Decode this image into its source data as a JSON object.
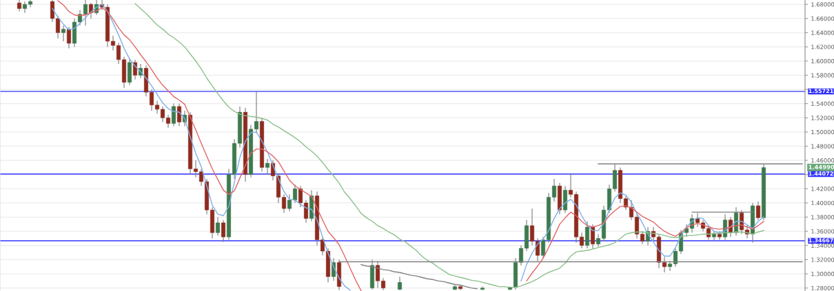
{
  "chart_data": {
    "type": "candlestick",
    "categories": [
      null,
      null,
      null,
      null,
      null,
      null,
      null,
      null,
      null,
      null,
      null,
      null,
      null,
      null,
      null,
      null,
      null,
      null,
      null,
      null,
      null,
      null,
      null,
      null,
      null,
      null,
      null,
      null,
      null,
      null,
      null,
      null,
      null,
      null,
      null,
      null,
      null,
      null,
      null,
      null,
      null,
      null,
      null,
      null,
      null,
      null,
      null,
      null,
      null,
      null,
      null,
      null,
      null,
      null,
      null,
      null,
      null,
      null,
      null,
      null,
      null,
      null,
      null,
      null,
      null,
      null,
      null,
      null,
      null,
      null,
      null,
      null,
      null,
      null,
      null,
      null,
      null,
      null,
      null,
      null,
      null,
      null,
      null,
      null,
      null,
      null,
      null,
      null,
      null,
      null,
      null,
      null,
      null,
      null,
      null,
      null,
      null,
      null,
      null,
      null,
      null,
      null,
      null,
      null,
      null,
      null,
      null,
      null,
      null,
      null,
      null,
      null,
      null,
      null,
      null,
      null,
      null,
      null,
      null,
      null,
      null,
      null,
      null,
      null,
      null,
      null,
      null,
      null,
      null,
      null,
      null,
      null,
      null,
      null,
      null,
      null,
      null,
      null,
      null,
      null,
      null,
      null,
      null,
      null,
      null,
      null
    ],
    "ohlc": [
      null,
      null,
      null,
      [
        1.682,
        1.686,
        1.67,
        1.674
      ],
      [
        1.674,
        1.684,
        1.668,
        1.68
      ],
      [
        1.68,
        1.686,
        1.676,
        1.684
      ],
      null,
      null,
      null,
      [
        1.684,
        1.686,
        1.655,
        1.66
      ],
      [
        1.66,
        1.664,
        1.632,
        1.64
      ],
      [
        1.64,
        1.65,
        1.628,
        1.645
      ],
      [
        1.645,
        1.648,
        1.618,
        1.625
      ],
      [
        1.625,
        1.66,
        1.62,
        1.655
      ],
      [
        1.655,
        1.672,
        1.65,
        1.666
      ],
      [
        1.666,
        1.686,
        1.65,
        1.68
      ],
      [
        1.68,
        1.682,
        1.66,
        1.668
      ],
      [
        1.668,
        1.686,
        1.665,
        1.68
      ],
      [
        1.68,
        1.686,
        1.672,
        1.676
      ],
      [
        1.676,
        1.68,
        1.62,
        1.628
      ],
      [
        1.628,
        1.636,
        1.615,
        1.622
      ],
      [
        1.622,
        1.626,
        1.596,
        1.602
      ],
      [
        1.602,
        1.606,
        1.562,
        1.57
      ],
      [
        1.57,
        1.604,
        1.566,
        1.598
      ],
      [
        1.598,
        1.602,
        1.574,
        1.58
      ],
      [
        1.58,
        1.596,
        1.576,
        1.59
      ],
      [
        1.59,
        1.594,
        1.55,
        1.556
      ],
      [
        1.556,
        1.56,
        1.53,
        1.538
      ],
      [
        1.538,
        1.544,
        1.526,
        1.532
      ],
      [
        1.532,
        1.536,
        1.514,
        1.52
      ],
      [
        1.52,
        1.524,
        1.506,
        1.512
      ],
      [
        1.512,
        1.54,
        1.508,
        1.536
      ],
      [
        1.536,
        1.54,
        1.508,
        1.514
      ],
      [
        1.514,
        1.53,
        1.508,
        1.524
      ],
      [
        1.524,
        1.528,
        1.44,
        1.448
      ],
      [
        1.448,
        1.46,
        1.436,
        1.444
      ],
      [
        1.444,
        1.448,
        1.424,
        1.43
      ],
      [
        1.43,
        1.434,
        1.384,
        1.39
      ],
      [
        1.39,
        1.394,
        1.35,
        1.358
      ],
      [
        1.358,
        1.38,
        1.354,
        1.372
      ],
      [
        1.372,
        1.376,
        1.345,
        1.352
      ],
      [
        1.352,
        1.448,
        1.348,
        1.44
      ],
      [
        1.44,
        1.49,
        1.434,
        1.484
      ],
      [
        1.484,
        1.536,
        1.478,
        1.528
      ],
      [
        1.528,
        1.534,
        1.43,
        1.44
      ],
      [
        1.44,
        1.51,
        1.436,
        1.504
      ],
      [
        1.504,
        1.557,
        1.498,
        1.515
      ],
      [
        1.515,
        1.52,
        1.444,
        1.45
      ],
      [
        1.45,
        1.462,
        1.44,
        1.456
      ],
      [
        1.456,
        1.46,
        1.432,
        1.438
      ],
      [
        1.438,
        1.442,
        1.4,
        1.408
      ],
      [
        1.408,
        1.412,
        1.386,
        1.392
      ],
      [
        1.392,
        1.412,
        1.388,
        1.404
      ],
      [
        1.404,
        1.426,
        1.4,
        1.42
      ],
      [
        1.42,
        1.424,
        1.394,
        1.4
      ],
      [
        1.4,
        1.404,
        1.372,
        1.378
      ],
      [
        1.378,
        1.418,
        1.374,
        1.41
      ],
      [
        1.41,
        1.416,
        1.34,
        1.348
      ],
      [
        1.348,
        1.352,
        1.326,
        1.332
      ],
      [
        1.332,
        1.336,
        1.288,
        1.296
      ],
      [
        1.296,
        1.322,
        1.29,
        1.316
      ],
      [
        1.316,
        1.32,
        1.277,
        1.282
      ],
      null,
      null,
      null,
      null,
      null,
      [
        1.28,
        1.32,
        1.278,
        1.312
      ],
      [
        1.312,
        1.318,
        1.28,
        1.29
      ],
      [
        1.29,
        1.294,
        1.277,
        1.28
      ],
      null,
      null,
      [
        1.278,
        1.296,
        1.277,
        1.288
      ],
      null,
      null,
      null,
      null,
      null,
      null,
      null,
      null,
      null,
      [
        1.278,
        1.284,
        1.277,
        1.282
      ],
      [
        1.282,
        1.284,
        1.277,
        1.279
      ],
      null,
      null,
      null,
      [
        1.278,
        1.282,
        1.277,
        1.28
      ],
      null,
      null,
      null,
      null,
      [
        1.278,
        1.282,
        1.277,
        1.281
      ],
      [
        1.281,
        1.322,
        1.278,
        1.316
      ],
      [
        1.316,
        1.34,
        1.312,
        1.336
      ],
      [
        1.336,
        1.376,
        1.332,
        1.368
      ],
      [
        1.368,
        1.392,
        1.34,
        1.346
      ],
      [
        1.346,
        1.35,
        1.318,
        1.326
      ],
      [
        1.326,
        1.352,
        1.322,
        1.348
      ],
      [
        1.348,
        1.414,
        1.344,
        1.408
      ],
      [
        1.408,
        1.434,
        1.402,
        1.424
      ],
      [
        1.424,
        1.428,
        1.384,
        1.39
      ],
      [
        1.39,
        1.424,
        1.386,
        1.418
      ],
      [
        1.418,
        1.442,
        1.408,
        1.412
      ],
      [
        1.412,
        1.416,
        1.344,
        1.352
      ],
      [
        1.352,
        1.358,
        1.336,
        1.34
      ],
      [
        1.34,
        1.374,
        1.336,
        1.366
      ],
      [
        1.366,
        1.37,
        1.336,
        1.342
      ],
      [
        1.342,
        1.356,
        1.338,
        1.35
      ],
      [
        1.35,
        1.396,
        1.346,
        1.39
      ],
      [
        1.39,
        1.426,
        1.386,
        1.42
      ],
      [
        1.42,
        1.455,
        1.416,
        1.446
      ],
      [
        1.446,
        1.45,
        1.4,
        1.406
      ],
      [
        1.406,
        1.41,
        1.39,
        1.394
      ],
      [
        1.394,
        1.404,
        1.376,
        1.38
      ],
      [
        1.38,
        1.384,
        1.35,
        1.356
      ],
      [
        1.356,
        1.36,
        1.342,
        1.346
      ],
      [
        1.346,
        1.366,
        1.34,
        1.36
      ],
      [
        1.36,
        1.366,
        1.346,
        1.352
      ],
      [
        1.352,
        1.356,
        1.308,
        1.316
      ],
      [
        1.316,
        1.324,
        1.302,
        1.31
      ],
      [
        1.31,
        1.318,
        1.304,
        1.314
      ],
      [
        1.314,
        1.336,
        1.31,
        1.332
      ],
      [
        1.332,
        1.362,
        1.328,
        1.358
      ],
      [
        1.358,
        1.37,
        1.352,
        1.364
      ],
      [
        1.364,
        1.384,
        1.358,
        1.378
      ],
      [
        1.378,
        1.386,
        1.366,
        1.372
      ],
      [
        1.372,
        1.376,
        1.36,
        1.364
      ],
      [
        1.364,
        1.368,
        1.348,
        1.352
      ],
      [
        1.352,
        1.36,
        1.346,
        1.356
      ],
      [
        1.356,
        1.36,
        1.348,
        1.352
      ],
      [
        1.352,
        1.384,
        1.348,
        1.376
      ],
      [
        1.376,
        1.38,
        1.352,
        1.358
      ],
      [
        1.358,
        1.394,
        1.354,
        1.386
      ],
      [
        1.386,
        1.39,
        1.356,
        1.362
      ],
      [
        1.362,
        1.368,
        1.35,
        1.356
      ],
      [
        1.356,
        1.4,
        1.344,
        1.396
      ],
      [
        1.396,
        1.402,
        1.376,
        1.379
      ],
      [
        1.379,
        1.455,
        1.376,
        1.4499
      ],
      null,
      null,
      null,
      null,
      null,
      null,
      null
    ],
    "series": [
      {
        "type": "line",
        "color": "#7fb0e8",
        "values": [
          null,
          null,
          null,
          null,
          null,
          null,
          null,
          null,
          null,
          1.674,
          1.662,
          1.652,
          1.644,
          1.646,
          1.653,
          1.661,
          1.669,
          1.676,
          1.68,
          1.67,
          1.654,
          1.637,
          1.618,
          1.603,
          1.593,
          1.585,
          1.576,
          1.565,
          1.553,
          1.541,
          1.533,
          1.529,
          1.528,
          1.519,
          1.493,
          1.47,
          1.451,
          1.424,
          1.397,
          1.384,
          1.382,
          1.395,
          1.429,
          1.464,
          1.487,
          1.499,
          1.5,
          1.487,
          1.472,
          1.453,
          1.434,
          1.416,
          1.405,
          1.404,
          1.398,
          1.393,
          1.391,
          1.376,
          1.352,
          1.329,
          1.31,
          1.294,
          1.283,
          1.277,
          null,
          null,
          null,
          null,
          null,
          null,
          null,
          null,
          null,
          null,
          null,
          null,
          null,
          null,
          null,
          null,
          null,
          null,
          null,
          null,
          null,
          null,
          null,
          null,
          null,
          null,
          null,
          null,
          null,
          null,
          1.29,
          1.313,
          1.329,
          1.342,
          1.349,
          1.361,
          1.378,
          1.392,
          1.4,
          1.405,
          1.397,
          1.382,
          1.369,
          1.361,
          1.361,
          1.371,
          1.39,
          1.407,
          1.414,
          1.411,
          1.401,
          1.385,
          1.372,
          1.356,
          1.345,
          1.333,
          1.325,
          1.325,
          1.337,
          1.353,
          1.366,
          1.374,
          1.379,
          1.378,
          1.368,
          1.36,
          1.358,
          1.361,
          1.366,
          1.374,
          1.374,
          1.369,
          1.364,
          1.374,
          1.38,
          null,
          null,
          null,
          null,
          null,
          null,
          null
        ]
      },
      {
        "type": "line",
        "color": "#e06666",
        "values": [
          null,
          null,
          null,
          null,
          null,
          null,
          null,
          null,
          null,
          null,
          1.685,
          1.679,
          1.67,
          1.665,
          1.664,
          1.665,
          1.668,
          1.671,
          1.675,
          1.67,
          1.659,
          1.647,
          1.637,
          1.63,
          1.62,
          1.609,
          1.599,
          1.588,
          1.576,
          1.566,
          1.558,
          1.55,
          1.545,
          1.539,
          1.521,
          1.503,
          1.484,
          1.466,
          1.448,
          1.433,
          1.418,
          1.412,
          1.417,
          1.435,
          1.453,
          1.47,
          1.476,
          1.476,
          1.472,
          1.466,
          1.458,
          1.445,
          1.432,
          1.424,
          1.419,
          1.414,
          1.409,
          1.393,
          1.376,
          1.36,
          1.351,
          1.341,
          1.325,
          1.308,
          1.291,
          1.276,
          null,
          null,
          null,
          null,
          null,
          null,
          null,
          null,
          null,
          null,
          null,
          null,
          null,
          null,
          null,
          null,
          null,
          null,
          null,
          null,
          null,
          null,
          null,
          null,
          null,
          null,
          null,
          null,
          null,
          1.29,
          1.301,
          1.311,
          1.322,
          1.337,
          1.353,
          1.37,
          1.379,
          1.387,
          1.382,
          1.374,
          1.368,
          1.366,
          1.368,
          1.372,
          1.382,
          1.389,
          1.395,
          1.396,
          1.393,
          1.387,
          1.381,
          1.377,
          1.373,
          1.366,
          1.36,
          1.356,
          1.353,
          1.358,
          1.365,
          1.369,
          1.371,
          1.369,
          1.366,
          1.364,
          1.363,
          1.364,
          1.366,
          1.368,
          1.369,
          1.366,
          1.363,
          1.368,
          1.374,
          null,
          null,
          null,
          null,
          null,
          null,
          null
        ]
      },
      {
        "type": "line",
        "color": "#8cc08c",
        "values": [
          null,
          null,
          null,
          null,
          null,
          null,
          null,
          null,
          null,
          null,
          null,
          null,
          null,
          null,
          null,
          null,
          null,
          null,
          null,
          null,
          null,
          null,
          null,
          null,
          1.681,
          1.674,
          1.667,
          1.659,
          1.651,
          1.645,
          1.638,
          1.633,
          1.627,
          1.62,
          1.61,
          1.6,
          1.589,
          1.576,
          1.565,
          1.554,
          1.544,
          1.535,
          1.529,
          1.525,
          1.523,
          1.522,
          1.521,
          1.519,
          1.517,
          1.511,
          1.507,
          1.502,
          1.497,
          1.492,
          1.486,
          1.479,
          1.473,
          1.466,
          1.457,
          1.447,
          1.438,
          1.428,
          1.415,
          1.406,
          1.396,
          1.385,
          1.379,
          1.374,
          1.368,
          1.364,
          1.359,
          1.355,
          1.349,
          1.345,
          1.339,
          1.333,
          1.325,
          1.319,
          1.315,
          1.309,
          1.304,
          1.299,
          1.297,
          1.295,
          1.293,
          1.291,
          1.29,
          1.288,
          1.286,
          1.284,
          1.282,
          1.282,
          1.281,
          1.281,
          1.283,
          1.286,
          1.289,
          1.293,
          1.298,
          1.302,
          1.305,
          1.308,
          1.315,
          1.325,
          1.331,
          1.332,
          1.333,
          1.335,
          1.337,
          1.339,
          1.341,
          1.344,
          1.35,
          1.356,
          1.358,
          1.359,
          1.359,
          1.358,
          1.357,
          1.356,
          1.354,
          1.352,
          1.351,
          1.352,
          1.354,
          1.354,
          1.355,
          1.356,
          1.356,
          1.357,
          1.357,
          1.358,
          1.358,
          1.359,
          1.359,
          1.358,
          1.356,
          1.359,
          1.361,
          null,
          null,
          null,
          null,
          null,
          null,
          null
        ]
      },
      {
        "type": "line",
        "color": "#808080",
        "values": [
          null,
          null,
          null,
          null,
          null,
          null,
          null,
          null,
          null,
          null,
          null,
          null,
          null,
          null,
          null,
          null,
          null,
          null,
          null,
          null,
          null,
          null,
          null,
          null,
          null,
          null,
          null,
          null,
          null,
          null,
          null,
          null,
          null,
          null,
          null,
          null,
          null,
          null,
          null,
          null,
          null,
          null,
          null,
          null,
          null,
          null,
          null,
          null,
          null,
          null,
          null,
          null,
          null,
          null,
          null,
          null,
          null,
          null,
          null,
          null,
          null,
          null,
          null,
          null,
          null,
          null,
          null,
          null,
          null,
          null,
          null,
          null,
          null,
          null,
          null,
          null,
          null,
          null,
          null,
          null,
          null,
          null,
          null,
          null,
          null,
          null,
          null,
          null,
          null,
          null,
          null,
          null,
          null,
          null,
          null,
          null,
          null,
          null,
          null,
          null,
          null,
          null,
          null,
          null,
          null,
          null,
          null,
          null,
          1.455,
          1.455,
          1.455,
          1.455,
          1.455,
          1.455,
          1.455,
          1.455,
          1.455,
          1.455,
          1.455,
          1.455,
          1.455,
          1.455,
          1.455,
          1.455,
          1.455,
          1.455,
          1.455,
          1.455,
          1.455,
          1.455,
          1.455,
          1.455,
          1.455,
          1.455,
          1.455,
          1.455,
          1.455,
          1.455,
          1.455,
          1.455,
          1.455,
          1.455,
          1.455,
          1.455,
          1.455,
          1.455
        ]
      },
      {
        "type": "line",
        "color": "#808080",
        "values": [
          null,
          null,
          null,
          null,
          null,
          null,
          null,
          null,
          null,
          null,
          null,
          null,
          null,
          null,
          null,
          null,
          null,
          null,
          null,
          null,
          null,
          null,
          null,
          null,
          null,
          null,
          null,
          null,
          null,
          null,
          null,
          null,
          null,
          null,
          null,
          null,
          null,
          null,
          null,
          null,
          null,
          null,
          null,
          null,
          null,
          null,
          null,
          null,
          null,
          null,
          null,
          null,
          null,
          null,
          null,
          null,
          null,
          null,
          null,
          null,
          null,
          1.317,
          1.317,
          1.317,
          1.317,
          1.317,
          1.317,
          1.317,
          1.317,
          1.317,
          1.317,
          1.317,
          1.317,
          1.317,
          1.317,
          1.317,
          1.317,
          1.317,
          1.317,
          1.317,
          1.317,
          1.317,
          1.317,
          1.317,
          1.317,
          1.317,
          1.317,
          1.317,
          1.317,
          1.317,
          1.317,
          1.317,
          1.317,
          1.317,
          1.317,
          1.317,
          1.317,
          1.317,
          1.317,
          1.317,
          1.317,
          1.317,
          1.317,
          1.317,
          1.317,
          1.317,
          1.317,
          1.317,
          1.317,
          1.317,
          1.317,
          1.317,
          1.317,
          1.317,
          1.317,
          1.317,
          1.317,
          1.317,
          1.317,
          1.317,
          1.317,
          1.317,
          1.317,
          1.317,
          1.317,
          1.317,
          1.317,
          1.317,
          1.317,
          1.317,
          1.317,
          1.317,
          1.317,
          1.317,
          1.317,
          1.317,
          1.317,
          1.317,
          1.317,
          1.317,
          1.317,
          1.317,
          1.317,
          1.317,
          1.317,
          1.317
        ]
      },
      {
        "type": "line",
        "color": "#808080",
        "values": [
          null,
          null,
          null,
          null,
          null,
          null,
          null,
          null,
          null,
          null,
          null,
          null,
          null,
          null,
          null,
          null,
          null,
          null,
          null,
          null,
          null,
          null,
          null,
          null,
          null,
          null,
          null,
          null,
          null,
          null,
          null,
          null,
          null,
          null,
          null,
          null,
          null,
          null,
          null,
          null,
          null,
          null,
          null,
          null,
          null,
          null,
          null,
          null,
          null,
          null,
          null,
          null,
          null,
          null,
          null,
          null,
          null,
          null,
          null,
          null,
          null,
          null,
          null,
          null,
          null,
          null,
          null,
          null,
          null,
          null,
          null,
          null,
          null,
          null,
          null,
          null,
          null,
          null,
          null,
          null,
          null,
          null,
          null,
          null,
          null,
          null,
          null,
          null,
          null,
          null,
          null,
          null,
          null,
          null,
          null,
          null,
          null,
          null,
          null,
          null,
          null,
          null,
          null,
          null,
          null,
          null,
          null,
          null,
          null,
          null,
          null,
          null,
          null,
          null,
          null,
          null,
          null,
          null,
          null,
          null,
          null,
          null,
          null,
          null,
          null,
          1.387,
          1.387,
          1.387,
          1.387,
          1.387,
          1.387,
          1.387,
          1.387,
          1.387,
          1.387,
          1.387,
          1.387,
          null,
          null,
          null,
          null,
          null,
          null,
          null,
          null,
          null
        ]
      },
      {
        "type": "line",
        "color": "#808080",
        "values": [
          null,
          null,
          null,
          null,
          null,
          null,
          null,
          null,
          null,
          null,
          null,
          null,
          null,
          null,
          null,
          null,
          null,
          null,
          null,
          null,
          null,
          null,
          null,
          null,
          null,
          null,
          null,
          null,
          null,
          null,
          null,
          null,
          null,
          null,
          null,
          null,
          null,
          null,
          null,
          null,
          null,
          null,
          null,
          null,
          null,
          null,
          null,
          null,
          null,
          null,
          null,
          null,
          null,
          null,
          null,
          null,
          null,
          null,
          null,
          null,
          null,
          null,
          null,
          null,
          null,
          1.313,
          1.311,
          1.31,
          1.308,
          1.306,
          1.305,
          1.303,
          1.302,
          1.3,
          1.298,
          1.297,
          1.295,
          1.293,
          1.292,
          1.29,
          1.289,
          1.287,
          1.285,
          1.284,
          1.282,
          1.28,
          1.279,
          null,
          null,
          null,
          null,
          null,
          null,
          null,
          null,
          null,
          null,
          null,
          null,
          null,
          null,
          null,
          null,
          null,
          null,
          null,
          null,
          null,
          null,
          null,
          null,
          null,
          null,
          null,
          null,
          null,
          null,
          null,
          null,
          null,
          null,
          null,
          null,
          null,
          null,
          null,
          null,
          null,
          null,
          null,
          null,
          null,
          null,
          null,
          null,
          null,
          null,
          null,
          null,
          null,
          null,
          null,
          null,
          null,
          null,
          null
        ]
      }
    ],
    "ylim": [
      1.2758,
      1.6861
    ],
    "yticks": [
      {
        "value": 1.28,
        "label": "1.28000"
      },
      {
        "value": 1.3,
        "label": "1.30000"
      },
      {
        "value": 1.32,
        "label": "1.32000"
      },
      {
        "value": 1.34,
        "label": "1.34000"
      },
      {
        "value": 1.36,
        "label": "1.36000"
      },
      {
        "value": 1.38,
        "label": "1.38000"
      },
      {
        "value": 1.4,
        "label": "1.40000"
      },
      {
        "value": 1.42,
        "label": "1.42000"
      },
      {
        "value": 1.44,
        "label": null
      },
      {
        "value": 1.46,
        "label": "1.46000"
      },
      {
        "value": 1.48,
        "label": "1.48000"
      },
      {
        "value": 1.5,
        "label": "1.50000"
      },
      {
        "value": 1.52,
        "label": "1.52000"
      },
      {
        "value": 1.54,
        "label": "1.54000"
      },
      {
        "value": 1.56,
        "label": null
      },
      {
        "value": 1.58,
        "label": "1.58000"
      },
      {
        "value": 1.6,
        "label": "1.60000"
      },
      {
        "value": 1.62,
        "label": "1.62000"
      },
      {
        "value": 1.64,
        "label": "1.64000"
      },
      {
        "value": 1.66,
        "label": "1.66000"
      },
      {
        "value": 1.68,
        "label": "1.68000"
      }
    ],
    "ref_lines": [
      {
        "axis": "y",
        "value": 1.55721,
        "label": "1.55721",
        "color": "#3030ff"
      },
      {
        "axis": "y",
        "value": 1.44072,
        "label": "1.44072",
        "color": "#3030ff"
      },
      {
        "axis": "y",
        "value": 1.34667,
        "label": "1.34667",
        "color": "#3030ff"
      }
    ],
    "annotations": [
      "1.44990"
    ],
    "grid": "y",
    "tick_labels": "y"
  }
}
